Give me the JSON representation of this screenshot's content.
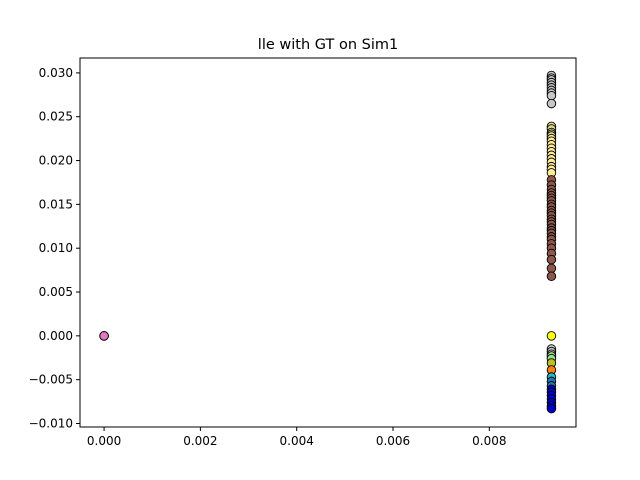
{
  "chart_data": {
    "type": "scatter",
    "title": "lle with GT on Sim1",
    "xlabel": "",
    "ylabel": "",
    "xlim": [
      -0.0005,
      0.0098
    ],
    "ylim": [
      -0.0104,
      0.0317
    ],
    "xticks": [
      0.0,
      0.002,
      0.004,
      0.006,
      0.008
    ],
    "xtick_labels": [
      "0.000",
      "0.002",
      "0.004",
      "0.006",
      "0.008"
    ],
    "yticks": [
      -0.01,
      -0.005,
      0.0,
      0.005,
      0.01,
      0.015,
      0.02,
      0.025,
      0.03
    ],
    "ytick_labels": [
      "−0.010",
      "−0.005",
      "0.000",
      "0.005",
      "0.010",
      "0.015",
      "0.020",
      "0.025",
      "0.030"
    ],
    "grid": false,
    "legend": "none",
    "marker_edge_color": "#000000",
    "series": [
      {
        "color": "#e377c2",
        "x": [
          0.0,
          0.0,
          0.0
        ],
        "y": [
          0.0,
          0.0,
          0.0
        ]
      },
      {
        "color": "#c7c7c7",
        "x": [
          0.00929,
          0.00929,
          0.00929,
          0.00929,
          0.00929,
          0.00929,
          0.00929,
          0.00929,
          0.00929,
          0.00929
        ],
        "y": [
          0.0297,
          0.0294,
          0.0292,
          0.0289,
          0.0286,
          0.0283,
          0.028,
          0.0277,
          0.0274,
          0.0265
        ]
      },
      {
        "color": "#dbdb8d",
        "x": [
          0.00929,
          0.00929,
          0.00929,
          0.00929,
          0.00929
        ],
        "y": [
          0.0239,
          0.0236,
          0.0232,
          0.023,
          0.0228
        ]
      },
      {
        "color": "#ffeb9a",
        "x": [
          0.00929,
          0.00929,
          0.00929,
          0.00929,
          0.00929,
          0.00929,
          0.00929,
          0.00929,
          0.00929,
          0.00929,
          0.00929
        ],
        "y": [
          0.0225,
          0.0222,
          0.0218,
          0.0214,
          0.021,
          0.0206,
          0.0202,
          0.0198,
          0.0193,
          0.019,
          0.0186
        ]
      },
      {
        "color": "#8c564b",
        "x": [
          0.00929,
          0.00929,
          0.00929,
          0.00929,
          0.00929,
          0.00929,
          0.00929,
          0.00929,
          0.00929,
          0.00929,
          0.00929,
          0.00929,
          0.00929,
          0.00929,
          0.00929,
          0.00929,
          0.00929,
          0.00929,
          0.00929,
          0.00929,
          0.00929,
          0.00929,
          0.00929,
          0.00929,
          0.00929,
          0.00929
        ],
        "y": [
          0.0178,
          0.0172,
          0.0167,
          0.0163,
          0.016,
          0.0157,
          0.0154,
          0.015,
          0.0147,
          0.0143,
          0.014,
          0.0137,
          0.0133,
          0.013,
          0.0127,
          0.0123,
          0.012,
          0.0117,
          0.0113,
          0.011,
          0.0105,
          0.01,
          0.0094,
          0.0087,
          0.0077,
          0.0068
        ]
      },
      {
        "color": "#ffff00",
        "x": [
          0.00929
        ],
        "y": [
          0.0
        ]
      },
      {
        "color": "#c7c7c7",
        "x": [
          0.00929,
          0.00929,
          0.00929
        ],
        "y": [
          -0.0015,
          -0.0018,
          -0.0021
        ]
      },
      {
        "color": "#98df8a",
        "x": [
          0.00929,
          0.00929
        ],
        "y": [
          -0.0023,
          -0.0026
        ]
      },
      {
        "color": "#bcbd22",
        "x": [
          0.00929
        ],
        "y": [
          -0.0031
        ]
      },
      {
        "color": "#ff7f0e",
        "x": [
          0.00929
        ],
        "y": [
          -0.0039
        ]
      },
      {
        "color": "#17becf",
        "x": [
          0.00929
        ],
        "y": [
          -0.0047
        ]
      },
      {
        "color": "#1f77b4",
        "x": [
          0.00929,
          0.00929
        ],
        "y": [
          -0.0052,
          -0.0057
        ]
      },
      {
        "color": "#0000cd",
        "x": [
          0.00929,
          0.00929,
          0.00929,
          0.00929,
          0.00929,
          0.00929,
          0.00929
        ],
        "y": [
          -0.0061,
          -0.0064,
          -0.0068,
          -0.0072,
          -0.0076,
          -0.008,
          -0.0083
        ]
      }
    ]
  }
}
